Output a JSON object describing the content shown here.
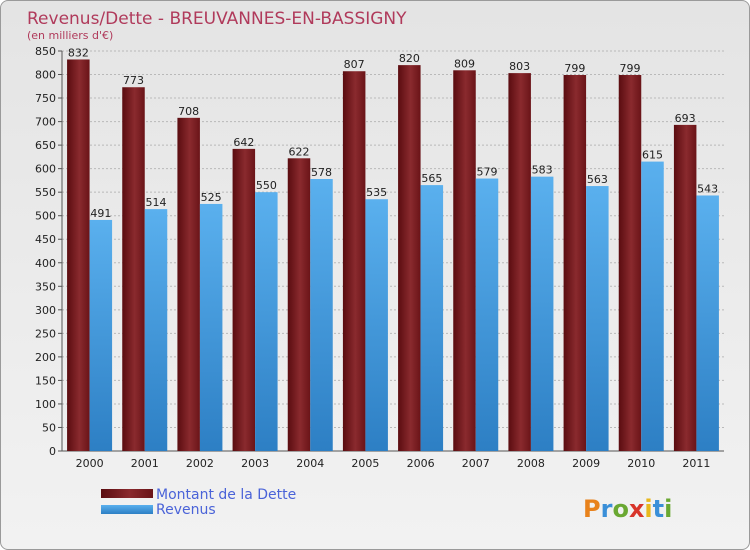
{
  "chart_data": {
    "type": "bar",
    "title": "Revenus/Dette - BREUVANNES-EN-BASSIGNY",
    "subtitle": "(en milliers d'€)",
    "categories": [
      "2000",
      "2001",
      "2002",
      "2003",
      "2004",
      "2005",
      "2006",
      "2007",
      "2008",
      "2009",
      "2010",
      "2011"
    ],
    "series": [
      {
        "name": "Montant de la Dette",
        "color": "#7a1a1f",
        "values": [
          832,
          773,
          708,
          642,
          622,
          807,
          820,
          809,
          803,
          799,
          799,
          693
        ]
      },
      {
        "name": "Revenus",
        "color": "#4fa3e3",
        "values": [
          491,
          514,
          525,
          550,
          578,
          535,
          565,
          579,
          583,
          563,
          615,
          543
        ]
      }
    ],
    "ylim": [
      0,
      850
    ],
    "yticks": [
      0,
      50,
      100,
      150,
      200,
      250,
      300,
      350,
      400,
      450,
      500,
      550,
      600,
      650,
      700,
      750,
      800,
      850
    ],
    "grid": true,
    "legend_position": "bottom-left"
  },
  "brand": {
    "logo_text": "Proxiti"
  }
}
